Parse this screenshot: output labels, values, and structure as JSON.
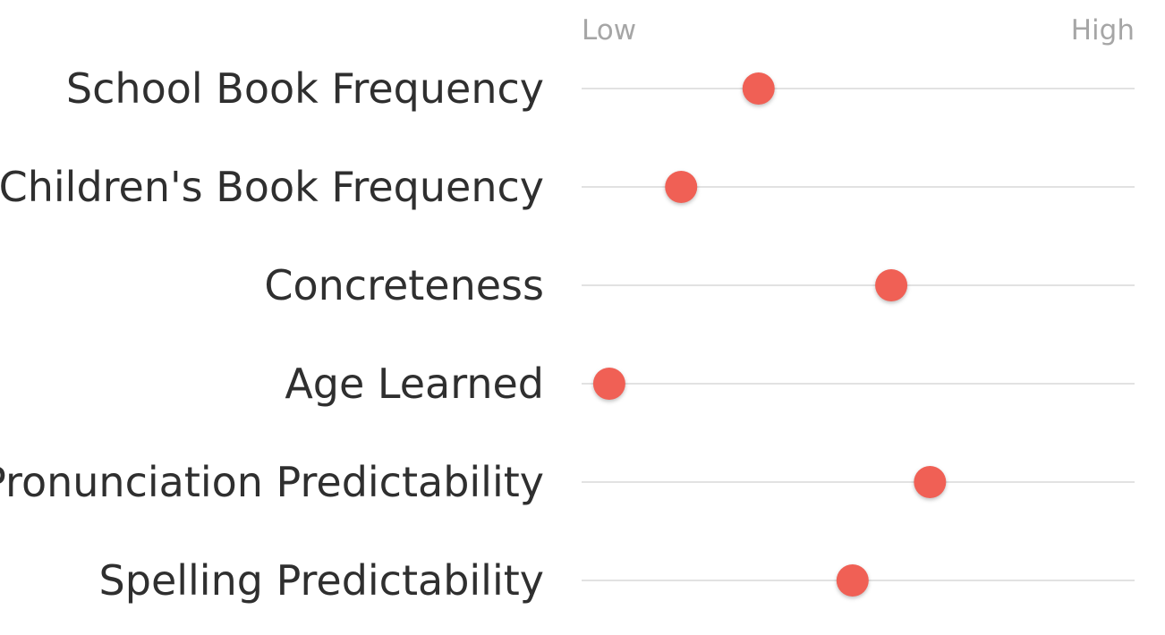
{
  "chart_data": {
    "type": "scatter",
    "title": "",
    "xlabel": "",
    "ylabel": "",
    "axis_labels": {
      "low": "Low",
      "high": "High"
    },
    "xlim": [
      0,
      1
    ],
    "grid": false,
    "categories": [
      "School Book Frequency",
      "Children's Book Frequency",
      "Concreteness",
      "Age Learned",
      "Pronunciation Predictability",
      "Spelling Predictability"
    ],
    "values": [
      0.32,
      0.18,
      0.56,
      0.05,
      0.63,
      0.49
    ],
    "colors": {
      "dot": "#f06055",
      "track": "#d9d9d9",
      "label": "#2f2f2f",
      "axis_label": "#a6a6a6"
    }
  }
}
